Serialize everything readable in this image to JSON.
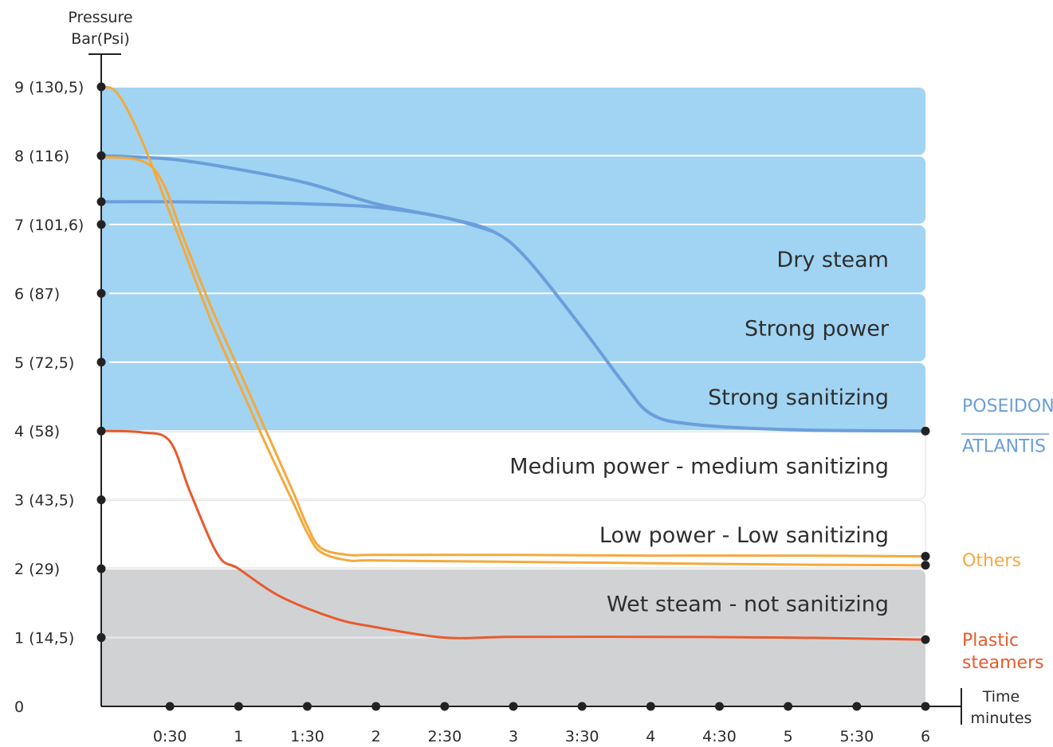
{
  "chart_data": {
    "type": "line",
    "y_axis_title": [
      "Pressure",
      "Bar(Psi)"
    ],
    "x_axis_title": [
      "Time",
      "minutes"
    ],
    "origin_label": "0",
    "ylim": [
      0,
      9
    ],
    "xlim": [
      0,
      6
    ],
    "y_ticks": [
      {
        "value": 1,
        "label": "1 (14,5)"
      },
      {
        "value": 2,
        "label": "2 (29)"
      },
      {
        "value": 3,
        "label": "3 (43,5)"
      },
      {
        "value": 4,
        "label": "4 (58)"
      },
      {
        "value": 5,
        "label": "5 (72,5)"
      },
      {
        "value": 6,
        "label": "6 (87)"
      },
      {
        "value": 7,
        "label": "7 (101,6)"
      },
      {
        "value": 8,
        "label": "8 (116)"
      },
      {
        "value": 9,
        "label": "9 (130,5)"
      }
    ],
    "x_ticks": [
      {
        "value": 0.5,
        "label": "0:30"
      },
      {
        "value": 1,
        "label": "1"
      },
      {
        "value": 1.5,
        "label": "1:30"
      },
      {
        "value": 2,
        "label": "2"
      },
      {
        "value": 2.5,
        "label": "2:30"
      },
      {
        "value": 3,
        "label": "3"
      },
      {
        "value": 3.5,
        "label": "3:30"
      },
      {
        "value": 4,
        "label": "4"
      },
      {
        "value": 4.5,
        "label": "4:30"
      },
      {
        "value": 5,
        "label": "5"
      },
      {
        "value": 5.5,
        "label": "5:30"
      },
      {
        "value": 6,
        "label": "6"
      }
    ],
    "zones": [
      {
        "from": 8,
        "to": 9,
        "label": "",
        "color": "#a0d4f2"
      },
      {
        "from": 7,
        "to": 8,
        "label": "",
        "color": "#a0d4f2"
      },
      {
        "from": 6,
        "to": 7,
        "label": "Dry steam",
        "color": "#a0d4f2"
      },
      {
        "from": 5,
        "to": 6,
        "label": "Strong power",
        "color": "#a0d4f2"
      },
      {
        "from": 4,
        "to": 5,
        "label": "Strong sanitizing",
        "color": "#a0d4f2"
      },
      {
        "from": 3,
        "to": 4,
        "label": "Medium power - medium sanitizing",
        "color": "#ffffff"
      },
      {
        "from": 2,
        "to": 3,
        "label": "Low power - Low sanitizing",
        "color": "#ffffff"
      },
      {
        "from": 1,
        "to": 2,
        "label": "Wet steam - not sanitizing",
        "color": "#d1d2d4"
      },
      {
        "from": 0,
        "to": 1,
        "label": "",
        "color": "#d1d2d4"
      }
    ],
    "series": [
      {
        "key": "poseidon",
        "color": "#6b9edb",
        "x": [
          0,
          0.5,
          1,
          1.5,
          2,
          2.5,
          2.85,
          3.1,
          3.5,
          3.8,
          4,
          4.3,
          5,
          6
        ],
        "y": [
          8,
          7.95,
          7.8,
          7.6,
          7.3,
          7.1,
          6.9,
          6.5,
          5.5,
          4.7,
          4.25,
          4.1,
          4.02,
          4
        ]
      },
      {
        "key": "atlantis",
        "color": "#6b9edb",
        "x": [
          0,
          0.5,
          1,
          1.5,
          2,
          2.5,
          2.85
        ],
        "y": [
          7.33,
          7.33,
          7.32,
          7.3,
          7.25,
          7.1,
          6.9
        ]
      },
      {
        "key": "others_a",
        "color": "#f5a93c",
        "x": [
          0,
          0.12,
          0.3,
          0.55,
          0.8,
          1,
          1.2,
          1.4,
          1.5,
          1.6,
          1.8,
          2,
          3,
          4,
          5,
          6
        ],
        "y": [
          9,
          8.9,
          8.2,
          6.9,
          5.6,
          4.7,
          3.8,
          2.95,
          2.52,
          2.24,
          2.12,
          2.12,
          2.1,
          2.08,
          2.06,
          2.05
        ]
      },
      {
        "key": "others_b",
        "color": "#f5a93c",
        "x": [
          0,
          0.3,
          0.45,
          0.6,
          0.8,
          1,
          1.2,
          1.4,
          1.5,
          1.6,
          1.8,
          2,
          3,
          4,
          5,
          6
        ],
        "y": [
          7.98,
          7.92,
          7.6,
          6.8,
          5.8,
          4.9,
          4,
          3.1,
          2.62,
          2.3,
          2.2,
          2.2,
          2.2,
          2.19,
          2.19,
          2.18
        ]
      },
      {
        "key": "plastic",
        "color": "#e85a2c",
        "x": [
          0,
          0.3,
          0.5,
          0.65,
          0.85,
          1,
          1.3,
          1.7,
          2,
          2.5,
          3,
          4,
          5,
          6
        ],
        "y": [
          4,
          3.98,
          3.85,
          3.1,
          2.2,
          2,
          1.6,
          1.28,
          1.15,
          1,
          1.01,
          1.01,
          1,
          0.97
        ]
      }
    ],
    "legend": [
      {
        "lines": [
          "POSEIDON"
        ],
        "color": "#6b9edb",
        "at_value": 4.37
      },
      {
        "lines": [
          "ATLANTIS"
        ],
        "color": "#6b9edb",
        "at_value": 3.79
      },
      {
        "lines": [
          "Others"
        ],
        "color": "#f5a93c",
        "at_value": 2.13
      },
      {
        "lines": [
          "Plastic",
          "steamers"
        ],
        "color": "#e85a2c",
        "at_value": 0.97
      }
    ],
    "end_markers": [
      4,
      2.18,
      2.05,
      0.97
    ],
    "grid": false
  }
}
